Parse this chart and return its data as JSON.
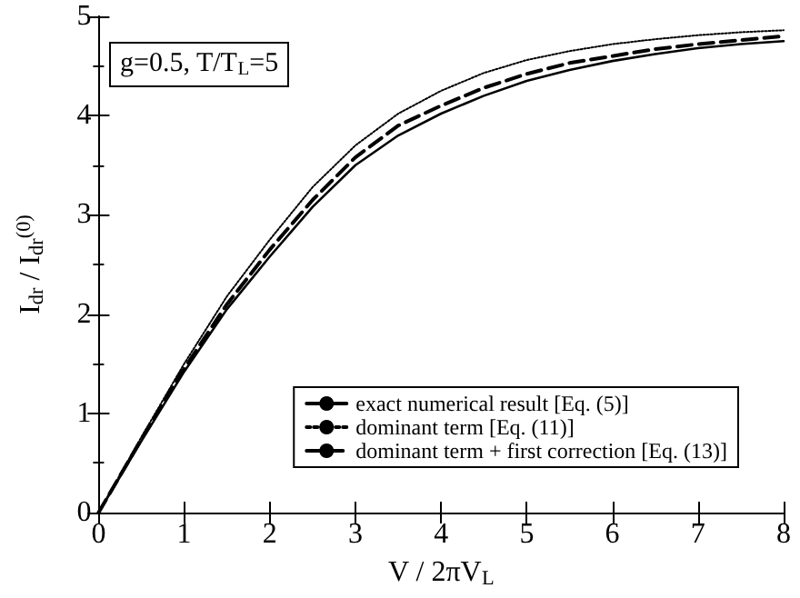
{
  "chart_data": {
    "type": "line",
    "xlabel": "V / 2πV$_{L}$",
    "ylabel": "I$_{dr}$ / I$_{dr}$$^{(0)}$",
    "annotations": [
      "g=0.5, T/T$_{L}$=5"
    ],
    "x": [
      0,
      0.5,
      1,
      1.5,
      2,
      2.5,
      3,
      3.5,
      4,
      4.5,
      5,
      5.5,
      6,
      6.5,
      7,
      7.5,
      8
    ],
    "series": [
      {
        "name": "exact numerical result [Eq. (5)]",
        "color": "#000000",
        "line_style": "solid",
        "values": [
          0,
          0.72,
          1.42,
          2.05,
          2.58,
          3.08,
          3.5,
          3.8,
          4.02,
          4.2,
          4.35,
          4.46,
          4.55,
          4.62,
          4.68,
          4.72,
          4.75
        ]
      },
      {
        "name": "dominant term [Eq. (11)]",
        "color": "#000000",
        "line_style": "dotted",
        "values": [
          0,
          0.76,
          1.5,
          2.18,
          2.75,
          3.28,
          3.7,
          4.02,
          4.25,
          4.43,
          4.56,
          4.65,
          4.72,
          4.77,
          4.81,
          4.84,
          4.86
        ]
      },
      {
        "name": "dominant term + first correction [Eq. (13)]",
        "color": "#000000",
        "line_style": "dashed",
        "values": [
          0,
          0.74,
          1.45,
          2.1,
          2.65,
          3.15,
          3.58,
          3.9,
          4.1,
          4.28,
          4.42,
          4.53,
          4.6,
          4.67,
          4.72,
          4.76,
          4.8
        ]
      }
    ],
    "xlim": [
      0,
      8
    ],
    "xticks": [
      0,
      1,
      2,
      3,
      4,
      5,
      6,
      7,
      8
    ],
    "ylim": [
      0,
      5
    ],
    "yticks": [
      0,
      1,
      2,
      3,
      4,
      5
    ],
    "grid": false,
    "legend": "bottom right",
    "marker": "none"
  }
}
